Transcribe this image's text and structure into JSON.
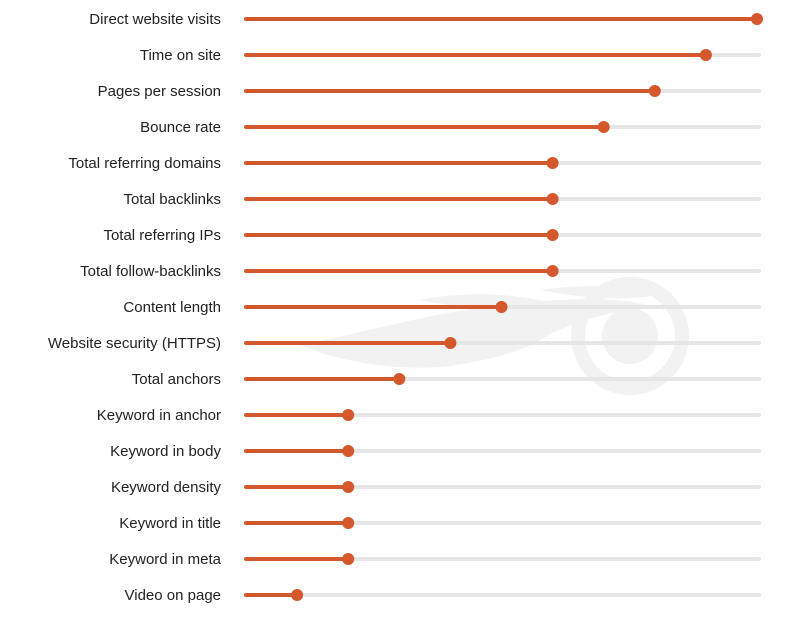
{
  "chart_data": {
    "type": "lollipop",
    "orientation": "horizontal",
    "title": "",
    "xlabel": "",
    "ylabel": "",
    "xlim": [
      0,
      10
    ],
    "grid": false,
    "legend": "none",
    "categories": [
      "Direct website visits",
      "Time on site",
      "Pages per session",
      "Bounce rate",
      "Total referring domains",
      "Total backlinks",
      "Total referring IPs",
      "Total follow-backlinks",
      "Content length",
      "Website security (HTTPS)",
      "Total anchors",
      "Keyword in anchor",
      "Keyword in body",
      "Keyword density",
      "Keyword in title",
      "Keyword in meta",
      "Video on page"
    ],
    "values": [
      10,
      9,
      8,
      7,
      6,
      6,
      6,
      6,
      5,
      4,
      3,
      2,
      2,
      2,
      2,
      2,
      1
    ]
  },
  "colors": {
    "accent": "#d4582b",
    "track": "#e6e6e6",
    "label": "#222222",
    "watermark": "#f2f2f2"
  },
  "watermark_icon": "semrush-flame-logo"
}
